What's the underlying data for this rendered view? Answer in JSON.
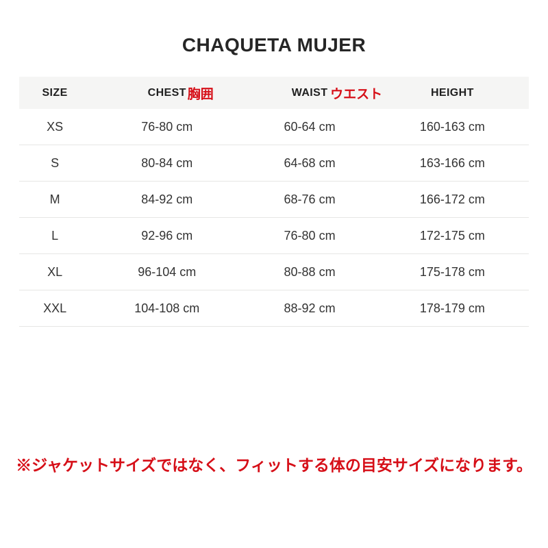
{
  "title": "CHAQUETA MUJER",
  "table": {
    "headers": {
      "size": "SIZE",
      "chest_en": "CHEST",
      "chest_jp": "胸囲",
      "waist_en": "WAIST",
      "waist_jp": "ウエスト",
      "height": "HEIGHT"
    },
    "rows": [
      {
        "size": "XS",
        "chest": "76-80 cm",
        "waist": "60-64 cm",
        "height": "160-163 cm"
      },
      {
        "size": "S",
        "chest": "80-84 cm",
        "waist": "64-68 cm",
        "height": "163-166 cm"
      },
      {
        "size": "M",
        "chest": "84-92 cm",
        "waist": "68-76 cm",
        "height": "166-172 cm"
      },
      {
        "size": "L",
        "chest": "92-96 cm",
        "waist": "76-80 cm",
        "height": "172-175 cm"
      },
      {
        "size": "XL",
        "chest": "96-104 cm",
        "waist": "80-88 cm",
        "height": "175-178 cm"
      },
      {
        "size": "XXL",
        "chest": "104-108 cm",
        "waist": "88-92 cm",
        "height": "178-179 cm"
      }
    ]
  },
  "note": "※ジャケットサイズではなく、フィットする体の目安サイズになります。",
  "colors": {
    "accent_red": "#d60f18",
    "header_bg": "#f5f5f4",
    "row_border": "#e6e6e4",
    "text_dark": "#262626"
  }
}
